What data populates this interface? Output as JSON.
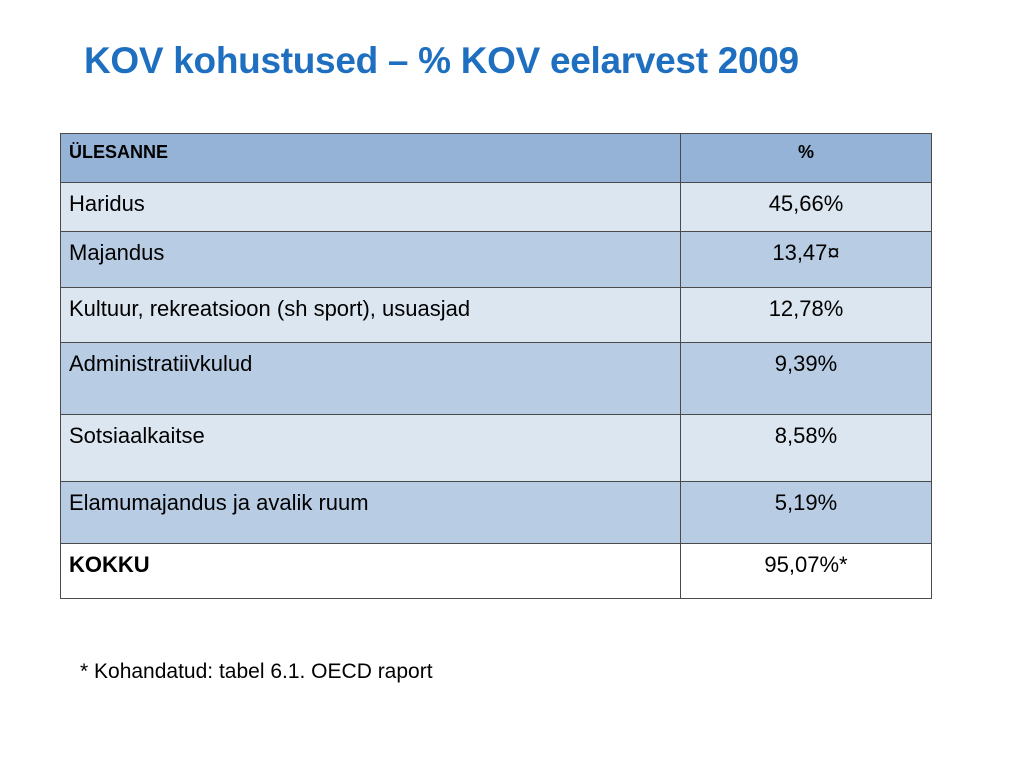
{
  "slide": {
    "title": "KOV kohustused – % KOV eelarvest 2009"
  },
  "table": {
    "headers": [
      "ÜLESANNE",
      "%"
    ],
    "rows": [
      {
        "task": "Haridus",
        "percent": "45,66%"
      },
      {
        "task": "Majandus",
        "percent": "13,47¤"
      },
      {
        "task": "Kultuur, rekreatsioon (sh sport), usuasjad",
        "percent": "12,78%"
      },
      {
        "task": "Administratiivkulud",
        "percent": "9,39%"
      },
      {
        "task": "Sotsiaalkaitse",
        "percent": "8,58%"
      },
      {
        "task": "Elamumajandus ja avalik ruum",
        "percent": "5,19%"
      }
    ],
    "total": {
      "task": "KOKKU",
      "percent": "95,07%*"
    }
  },
  "footnote": "* Kohandatud: tabel 6.1. OECD raport",
  "colors": {
    "title": "#1f6fc0",
    "header_bg": "#95b3d7",
    "row_light": "#dce6f1",
    "row_dark": "#b8cce4"
  }
}
